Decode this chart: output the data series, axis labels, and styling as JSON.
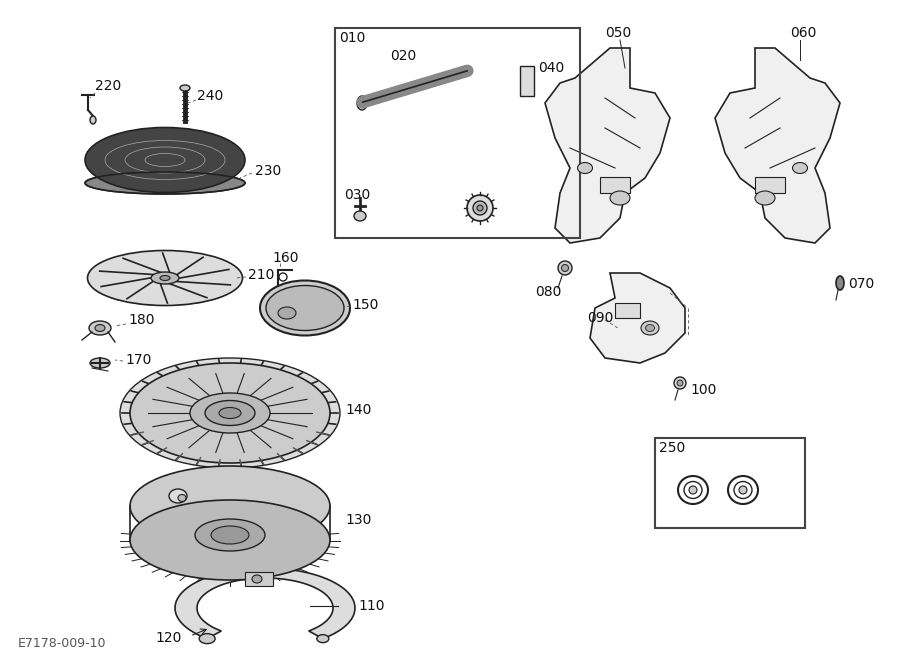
{
  "background_color": "#ffffff",
  "title_code": "E7178-009-10",
  "line_color": "#222222",
  "text_color": "#111111",
  "font_size": 10,
  "fig_w": 9.2,
  "fig_h": 6.68,
  "dpi": 100
}
